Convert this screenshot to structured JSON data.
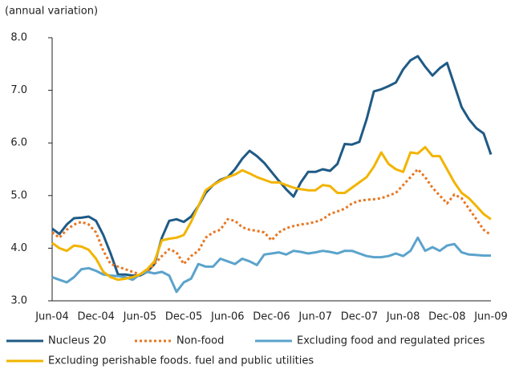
{
  "chart_data": {
    "type": "line",
    "y_label": "(annual variation)",
    "categories": [
      "Jun-04",
      null,
      null,
      null,
      null,
      null,
      "Dec-04",
      null,
      null,
      null,
      null,
      null,
      "Jun-05",
      null,
      null,
      null,
      null,
      null,
      "Dec-05",
      null,
      null,
      null,
      null,
      null,
      "Jun-06",
      null,
      null,
      null,
      null,
      null,
      "Dec-06",
      null,
      null,
      null,
      null,
      null,
      "Jun-07",
      null,
      null,
      null,
      null,
      null,
      "Dec-07",
      null,
      null,
      null,
      null,
      null,
      "Jun-08",
      null,
      null,
      null,
      null,
      null,
      "Dec-08",
      null,
      null,
      null,
      null,
      null,
      "Jun-09"
    ],
    "series": [
      {
        "name": "Nucleus 20",
        "color": "#1f5a85",
        "line_style": "solid",
        "values": [
          4.37,
          4.27,
          4.45,
          4.57,
          4.58,
          4.6,
          4.52,
          4.25,
          3.9,
          3.5,
          3.5,
          3.48,
          3.48,
          3.55,
          3.7,
          4.2,
          4.52,
          4.55,
          4.5,
          4.6,
          4.8,
          5.05,
          5.2,
          5.3,
          5.35,
          5.5,
          5.7,
          5.85,
          5.75,
          5.62,
          5.45,
          5.28,
          5.12,
          4.98,
          5.25,
          5.45,
          5.45,
          5.5,
          5.47,
          5.6,
          5.98,
          5.97,
          6.02,
          6.45,
          6.98,
          7.02,
          7.08,
          7.15,
          7.4,
          7.57,
          7.65,
          7.45,
          7.28,
          7.42,
          7.52,
          7.1,
          6.68,
          6.45,
          6.28,
          6.18,
          5.78
        ]
      },
      {
        "name": "Non-food",
        "color": "#e87722",
        "line_style": "dotted",
        "values": [
          4.3,
          4.2,
          4.35,
          4.45,
          4.5,
          4.45,
          4.3,
          3.95,
          3.7,
          3.65,
          3.6,
          3.55,
          3.5,
          3.55,
          3.7,
          3.85,
          3.98,
          3.92,
          3.7,
          3.85,
          3.95,
          4.2,
          4.3,
          4.35,
          4.55,
          4.52,
          4.4,
          4.35,
          4.33,
          4.3,
          4.15,
          4.3,
          4.38,
          4.42,
          4.45,
          4.47,
          4.5,
          4.55,
          4.65,
          4.7,
          4.75,
          4.85,
          4.9,
          4.92,
          4.93,
          4.95,
          5.0,
          5.05,
          5.2,
          5.35,
          5.5,
          5.35,
          5.15,
          5.0,
          4.85,
          5.02,
          4.95,
          4.75,
          4.55,
          4.35,
          4.25
        ]
      },
      {
        "name": "Excluding food and regulated prices",
        "color": "#5ba3cc",
        "line_style": "solid",
        "values": [
          3.45,
          3.4,
          3.35,
          3.45,
          3.6,
          3.62,
          3.57,
          3.5,
          3.48,
          3.47,
          3.45,
          3.4,
          3.5,
          3.55,
          3.52,
          3.55,
          3.48,
          3.17,
          3.35,
          3.42,
          3.7,
          3.65,
          3.65,
          3.8,
          3.75,
          3.7,
          3.8,
          3.75,
          3.68,
          3.88,
          3.9,
          3.92,
          3.88,
          3.95,
          3.93,
          3.9,
          3.92,
          3.95,
          3.93,
          3.9,
          3.95,
          3.95,
          3.9,
          3.85,
          3.83,
          3.83,
          3.85,
          3.9,
          3.85,
          3.95,
          4.2,
          3.95,
          4.02,
          3.95,
          4.05,
          4.08,
          3.92,
          3.88,
          3.87,
          3.86,
          3.86
        ]
      },
      {
        "name": "Excluding perishable foods. fuel and public utilities",
        "color": "#f2b400",
        "line_style": "solid",
        "values": [
          4.1,
          4.0,
          3.95,
          4.05,
          4.03,
          3.97,
          3.8,
          3.55,
          3.45,
          3.4,
          3.42,
          3.45,
          3.5,
          3.6,
          3.75,
          4.15,
          4.18,
          4.2,
          4.25,
          4.5,
          4.8,
          5.1,
          5.2,
          5.28,
          5.35,
          5.4,
          5.48,
          5.42,
          5.35,
          5.3,
          5.25,
          5.25,
          5.2,
          5.15,
          5.12,
          5.1,
          5.1,
          5.2,
          5.18,
          5.05,
          5.05,
          5.15,
          5.25,
          5.35,
          5.55,
          5.82,
          5.6,
          5.5,
          5.45,
          5.82,
          5.8,
          5.92,
          5.75,
          5.75,
          5.5,
          5.25,
          5.05,
          4.95,
          4.8,
          4.65,
          4.55
        ]
      }
    ],
    "ylim": [
      3,
      8
    ],
    "yticks": [
      {
        "value": 3,
        "label": "3.0"
      },
      {
        "value": 4,
        "label": "4.0"
      },
      {
        "value": 5,
        "label": "5.0"
      },
      {
        "value": 6,
        "label": "6.0"
      },
      {
        "value": 7,
        "label": "7.0"
      },
      {
        "value": 8,
        "label": "8.0"
      }
    ],
    "grid": false
  }
}
